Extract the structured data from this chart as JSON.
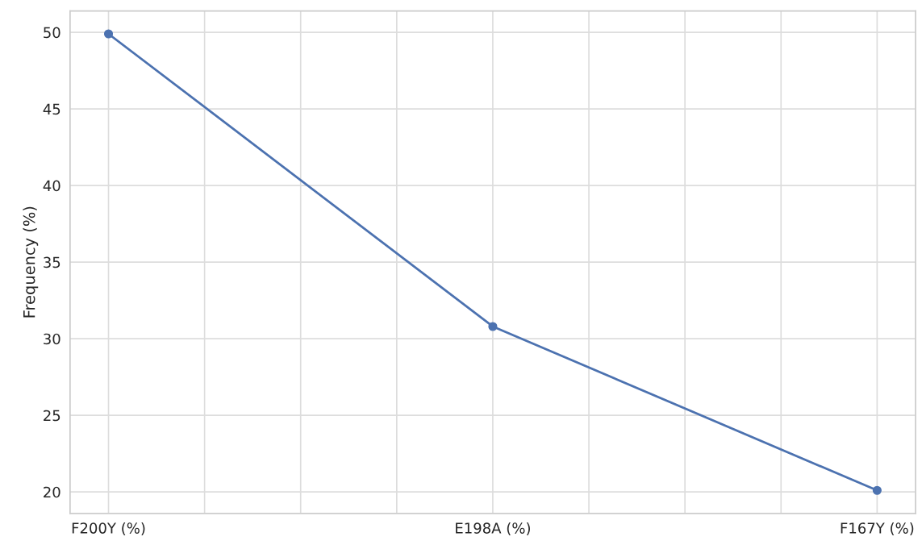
{
  "chart_data": {
    "type": "line",
    "ylabel": "Frequency (%)",
    "categories": [
      "F200Y (%)",
      "E198A (%)",
      "F167Y (%)"
    ],
    "series": [
      {
        "color": "#4c72b0",
        "values": [
          49.9,
          30.8,
          20.1
        ]
      }
    ],
    "ylim": [
      18.6,
      51.4
    ],
    "yticks": [
      20,
      25,
      30,
      35,
      40,
      45,
      50
    ],
    "grid": true,
    "marker": "circle",
    "line_style": "solid"
  }
}
